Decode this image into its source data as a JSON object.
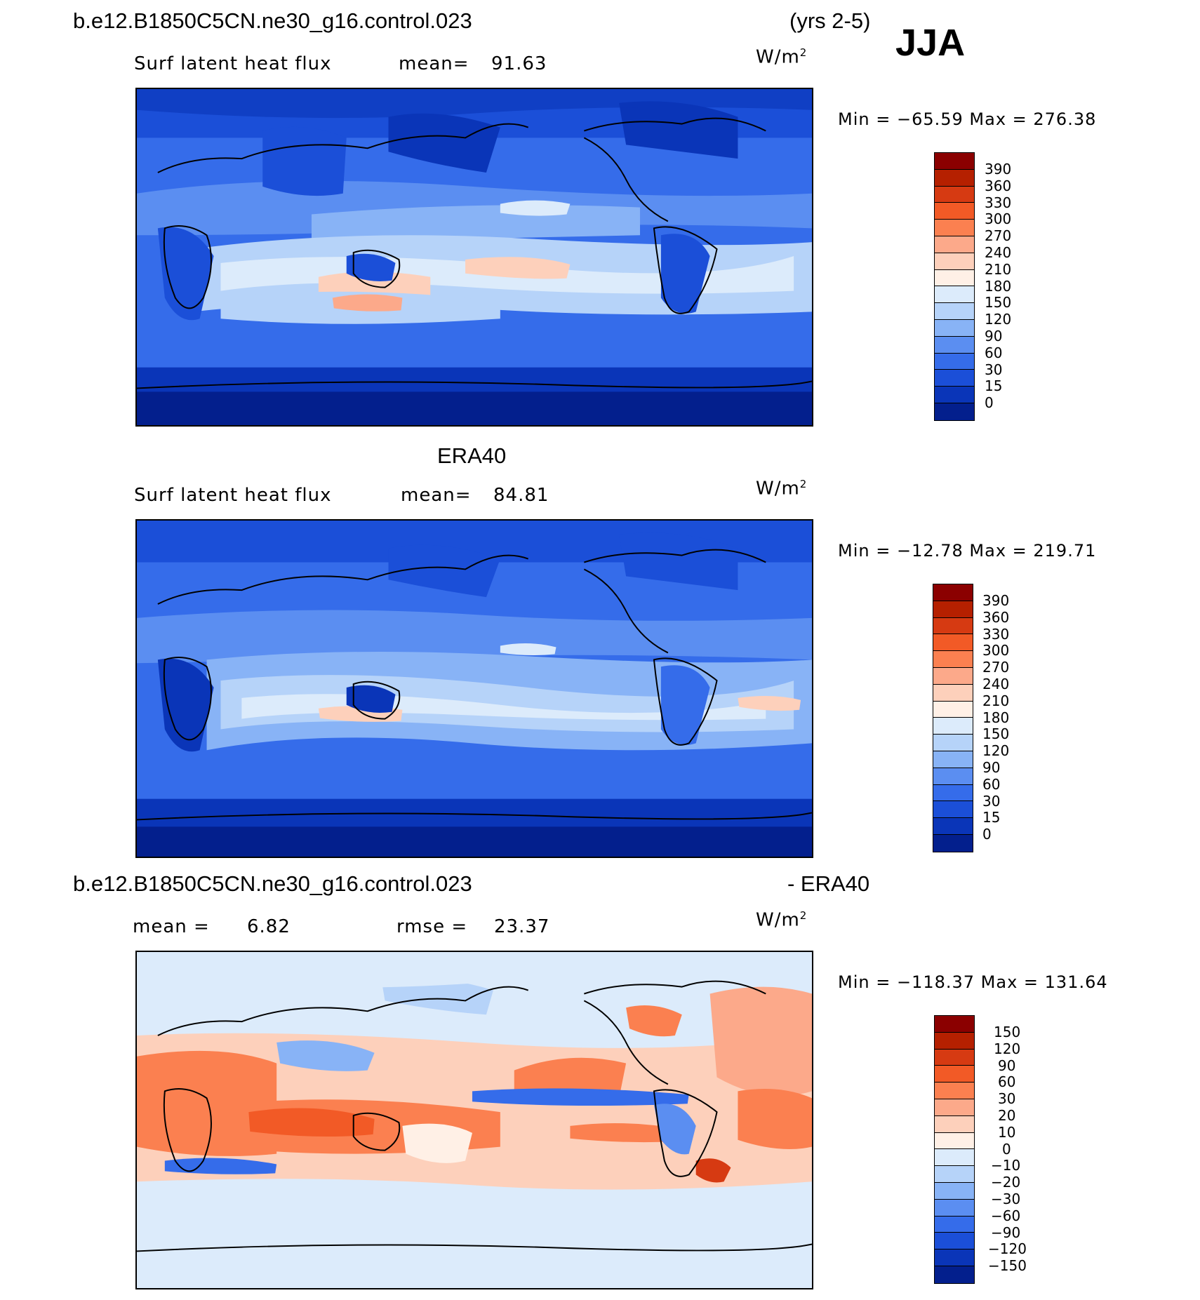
{
  "header": {
    "case_name": "b.e12.B1850C5CN.ne30_g16.control.023",
    "years": "(yrs 2-5)",
    "season": "JJA"
  },
  "panels": [
    {
      "title": "",
      "variable": "Surf latent heat flux",
      "stat1": "mean=",
      "stat1_value": "91.63",
      "stat2": "",
      "stat2_value": "",
      "units": "W/m",
      "units_exp": "2",
      "minmax": "Min = −65.59 Max = 276.38",
      "colorbar_labels": [
        "390",
        "360",
        "330",
        "300",
        "270",
        "240",
        "210",
        "180",
        "150",
        "120",
        "90",
        "60",
        "30",
        "15",
        "0"
      ],
      "colors": [
        "#8b0000",
        "#b52000",
        "#d63a12",
        "#f25a26",
        "#fb8050",
        "#fca98a",
        "#fdd0bb",
        "#fff0e6",
        "#dcebfb",
        "#b6d3f9",
        "#88b3f6",
        "#5b8ef1",
        "#356cea",
        "#1b4fd8",
        "#0a35b8",
        "#031f8d"
      ]
    },
    {
      "title": "ERA40",
      "variable": "Surf latent heat flux",
      "stat1": "mean=",
      "stat1_value": "84.81",
      "stat2": "",
      "stat2_value": "",
      "units": "W/m",
      "units_exp": "2",
      "minmax": "Min = −12.78 Max = 219.71",
      "colorbar_labels": [
        "390",
        "360",
        "330",
        "300",
        "270",
        "240",
        "210",
        "180",
        "150",
        "120",
        "90",
        "60",
        "30",
        "15",
        "0"
      ],
      "colors": [
        "#8b0000",
        "#b52000",
        "#d63a12",
        "#f25a26",
        "#fb8050",
        "#fca98a",
        "#fdd0bb",
        "#fff0e6",
        "#dcebfb",
        "#b6d3f9",
        "#88b3f6",
        "#5b8ef1",
        "#356cea",
        "#1b4fd8",
        "#0a35b8",
        "#031f8d"
      ]
    },
    {
      "title_left": "b.e12.B1850C5CN.ne30_g16.control.023",
      "title_right": "- ERA40",
      "variable": "",
      "stat1": "mean =",
      "stat1_value": "6.82",
      "stat2": "rmse =",
      "stat2_value": "23.37",
      "units": "W/m",
      "units_exp": "2",
      "minmax": "Min = −118.37 Max = 131.64",
      "colorbar_labels": [
        "150",
        "120",
        "90",
        "60",
        "30",
        "20",
        "10",
        "0",
        "−10",
        "−20",
        "−30",
        "−60",
        "−90",
        "−120",
        "−150"
      ],
      "colors": [
        "#8b0000",
        "#b52000",
        "#d63a12",
        "#f25a26",
        "#fb8050",
        "#fca98a",
        "#fdd0bb",
        "#fff0e6",
        "#dcebfb",
        "#b6d3f9",
        "#88b3f6",
        "#5b8ef1",
        "#356cea",
        "#1b4fd8",
        "#0a35b8",
        "#031f8d"
      ]
    }
  ]
}
